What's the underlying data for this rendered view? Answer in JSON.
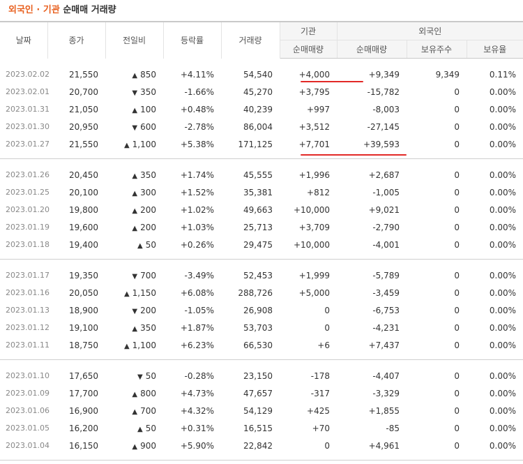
{
  "title": {
    "part1": "외국인",
    "sep": " · ",
    "part2": "기관",
    "part3": " 순매매 거래량"
  },
  "header": {
    "date": "날짜",
    "close": "종가",
    "diff": "전일비",
    "rate": "등락률",
    "volume": "거래량",
    "inst": "기관",
    "foreign": "외국인",
    "inst_net": "순매매량",
    "foreign_net": "순매매량",
    "holdings": "보유주수",
    "ratio": "보유율"
  },
  "groups": [
    [
      {
        "date": "2023.02.02",
        "close": "21,550",
        "dir": "up",
        "diff": "850",
        "rate": "+4.11%",
        "volume": "54,540",
        "inst": "+4,000",
        "foreign": "+9,349",
        "hold": "9,349",
        "ratio": "0.11%"
      },
      {
        "date": "2023.02.01",
        "close": "20,700",
        "dir": "dn",
        "diff": "350",
        "rate": "-1.66%",
        "volume": "45,270",
        "inst": "+3,795",
        "foreign": "-15,782",
        "hold": "0",
        "ratio": "0.00%"
      },
      {
        "date": "2023.01.31",
        "close": "21,050",
        "dir": "up",
        "diff": "100",
        "rate": "+0.48%",
        "volume": "40,239",
        "inst": "+997",
        "foreign": "-8,003",
        "hold": "0",
        "ratio": "0.00%"
      },
      {
        "date": "2023.01.30",
        "close": "20,950",
        "dir": "dn",
        "diff": "600",
        "rate": "-2.78%",
        "volume": "86,004",
        "inst": "+3,512",
        "foreign": "-27,145",
        "hold": "0",
        "ratio": "0.00%"
      },
      {
        "date": "2023.01.27",
        "close": "21,550",
        "dir": "up",
        "diff": "1,100",
        "rate": "+5.38%",
        "volume": "171,125",
        "inst": "+7,701",
        "foreign": "+39,593",
        "hold": "0",
        "ratio": "0.00%"
      }
    ],
    [
      {
        "date": "2023.01.26",
        "close": "20,450",
        "dir": "up",
        "diff": "350",
        "rate": "+1.74%",
        "volume": "45,555",
        "inst": "+1,996",
        "foreign": "+2,687",
        "hold": "0",
        "ratio": "0.00%"
      },
      {
        "date": "2023.01.25",
        "close": "20,100",
        "dir": "up",
        "diff": "300",
        "rate": "+1.52%",
        "volume": "35,381",
        "inst": "+812",
        "foreign": "-1,005",
        "hold": "0",
        "ratio": "0.00%"
      },
      {
        "date": "2023.01.20",
        "close": "19,800",
        "dir": "up",
        "diff": "200",
        "rate": "+1.02%",
        "volume": "49,663",
        "inst": "+10,000",
        "foreign": "+9,021",
        "hold": "0",
        "ratio": "0.00%"
      },
      {
        "date": "2023.01.19",
        "close": "19,600",
        "dir": "up",
        "diff": "200",
        "rate": "+1.03%",
        "volume": "25,713",
        "inst": "+3,709",
        "foreign": "-2,790",
        "hold": "0",
        "ratio": "0.00%"
      },
      {
        "date": "2023.01.18",
        "close": "19,400",
        "dir": "up",
        "diff": "50",
        "rate": "+0.26%",
        "volume": "29,475",
        "inst": "+10,000",
        "foreign": "-4,001",
        "hold": "0",
        "ratio": "0.00%"
      }
    ],
    [
      {
        "date": "2023.01.17",
        "close": "19,350",
        "dir": "dn",
        "diff": "700",
        "rate": "-3.49%",
        "volume": "52,453",
        "inst": "+1,999",
        "foreign": "-5,789",
        "hold": "0",
        "ratio": "0.00%"
      },
      {
        "date": "2023.01.16",
        "close": "20,050",
        "dir": "up",
        "diff": "1,150",
        "rate": "+6.08%",
        "volume": "288,726",
        "inst": "+5,000",
        "foreign": "-3,459",
        "hold": "0",
        "ratio": "0.00%"
      },
      {
        "date": "2023.01.13",
        "close": "18,900",
        "dir": "dn",
        "diff": "200",
        "rate": "-1.05%",
        "volume": "26,908",
        "inst": "0",
        "foreign": "-6,753",
        "hold": "0",
        "ratio": "0.00%"
      },
      {
        "date": "2023.01.12",
        "close": "19,100",
        "dir": "up",
        "diff": "350",
        "rate": "+1.87%",
        "volume": "53,703",
        "inst": "0",
        "foreign": "-4,231",
        "hold": "0",
        "ratio": "0.00%"
      },
      {
        "date": "2023.01.11",
        "close": "18,750",
        "dir": "up",
        "diff": "1,100",
        "rate": "+6.23%",
        "volume": "66,530",
        "inst": "+6",
        "foreign": "+7,437",
        "hold": "0",
        "ratio": "0.00%"
      }
    ],
    [
      {
        "date": "2023.01.10",
        "close": "17,650",
        "dir": "dn",
        "diff": "50",
        "rate": "-0.28%",
        "volume": "23,150",
        "inst": "-178",
        "foreign": "-4,407",
        "hold": "0",
        "ratio": "0.00%"
      },
      {
        "date": "2023.01.09",
        "close": "17,700",
        "dir": "up",
        "diff": "800",
        "rate": "+4.73%",
        "volume": "47,657",
        "inst": "-317",
        "foreign": "-3,329",
        "hold": "0",
        "ratio": "0.00%"
      },
      {
        "date": "2023.01.06",
        "close": "16,900",
        "dir": "up",
        "diff": "700",
        "rate": "+4.32%",
        "volume": "54,129",
        "inst": "+425",
        "foreign": "+1,855",
        "hold": "0",
        "ratio": "0.00%"
      },
      {
        "date": "2023.01.05",
        "close": "16,200",
        "dir": "up",
        "diff": "50",
        "rate": "+0.31%",
        "volume": "16,515",
        "inst": "+70",
        "foreign": "-85",
        "hold": "0",
        "ratio": "0.00%"
      },
      {
        "date": "2023.01.04",
        "close": "16,150",
        "dir": "up",
        "diff": "900",
        "rate": "+5.90%",
        "volume": "22,842",
        "inst": "0",
        "foreign": "+4,961",
        "hold": "0",
        "ratio": "0.00%"
      }
    ]
  ],
  "colors": {
    "up": "#e22926",
    "down": "#1e5fd1",
    "accent": "#e8601f"
  },
  "icons": {
    "up": "triangle-up-icon",
    "down": "triangle-down-icon"
  }
}
